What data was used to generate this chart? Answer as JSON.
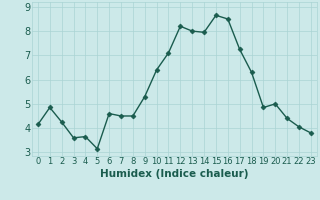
{
  "x": [
    0,
    1,
    2,
    3,
    4,
    5,
    6,
    7,
    8,
    9,
    10,
    11,
    12,
    13,
    14,
    15,
    16,
    17,
    18,
    19,
    20,
    21,
    22,
    23
  ],
  "y": [
    4.15,
    4.85,
    4.25,
    3.6,
    3.65,
    3.15,
    4.6,
    4.5,
    4.5,
    5.3,
    6.4,
    7.1,
    8.2,
    8.0,
    7.95,
    8.65,
    8.5,
    7.25,
    6.3,
    4.85,
    5.0,
    4.4,
    4.05,
    3.8
  ],
  "line_color": "#1a5c4e",
  "marker": "D",
  "marker_size": 2.5,
  "bg_color": "#cce9e9",
  "grid_color": "#aad4d4",
  "xlabel": "Humidex (Indice chaleur)",
  "ylim": [
    2.85,
    9.2
  ],
  "xlim": [
    -0.5,
    23.5
  ],
  "yticks": [
    3,
    4,
    5,
    6,
    7,
    8,
    9
  ],
  "xticks": [
    0,
    1,
    2,
    3,
    4,
    5,
    6,
    7,
    8,
    9,
    10,
    11,
    12,
    13,
    14,
    15,
    16,
    17,
    18,
    19,
    20,
    21,
    22,
    23
  ],
  "tick_color": "#1a5c4e",
  "font_size_x": 6,
  "font_size_y": 7,
  "xlabel_fontsize": 7.5,
  "linewidth": 1.0
}
